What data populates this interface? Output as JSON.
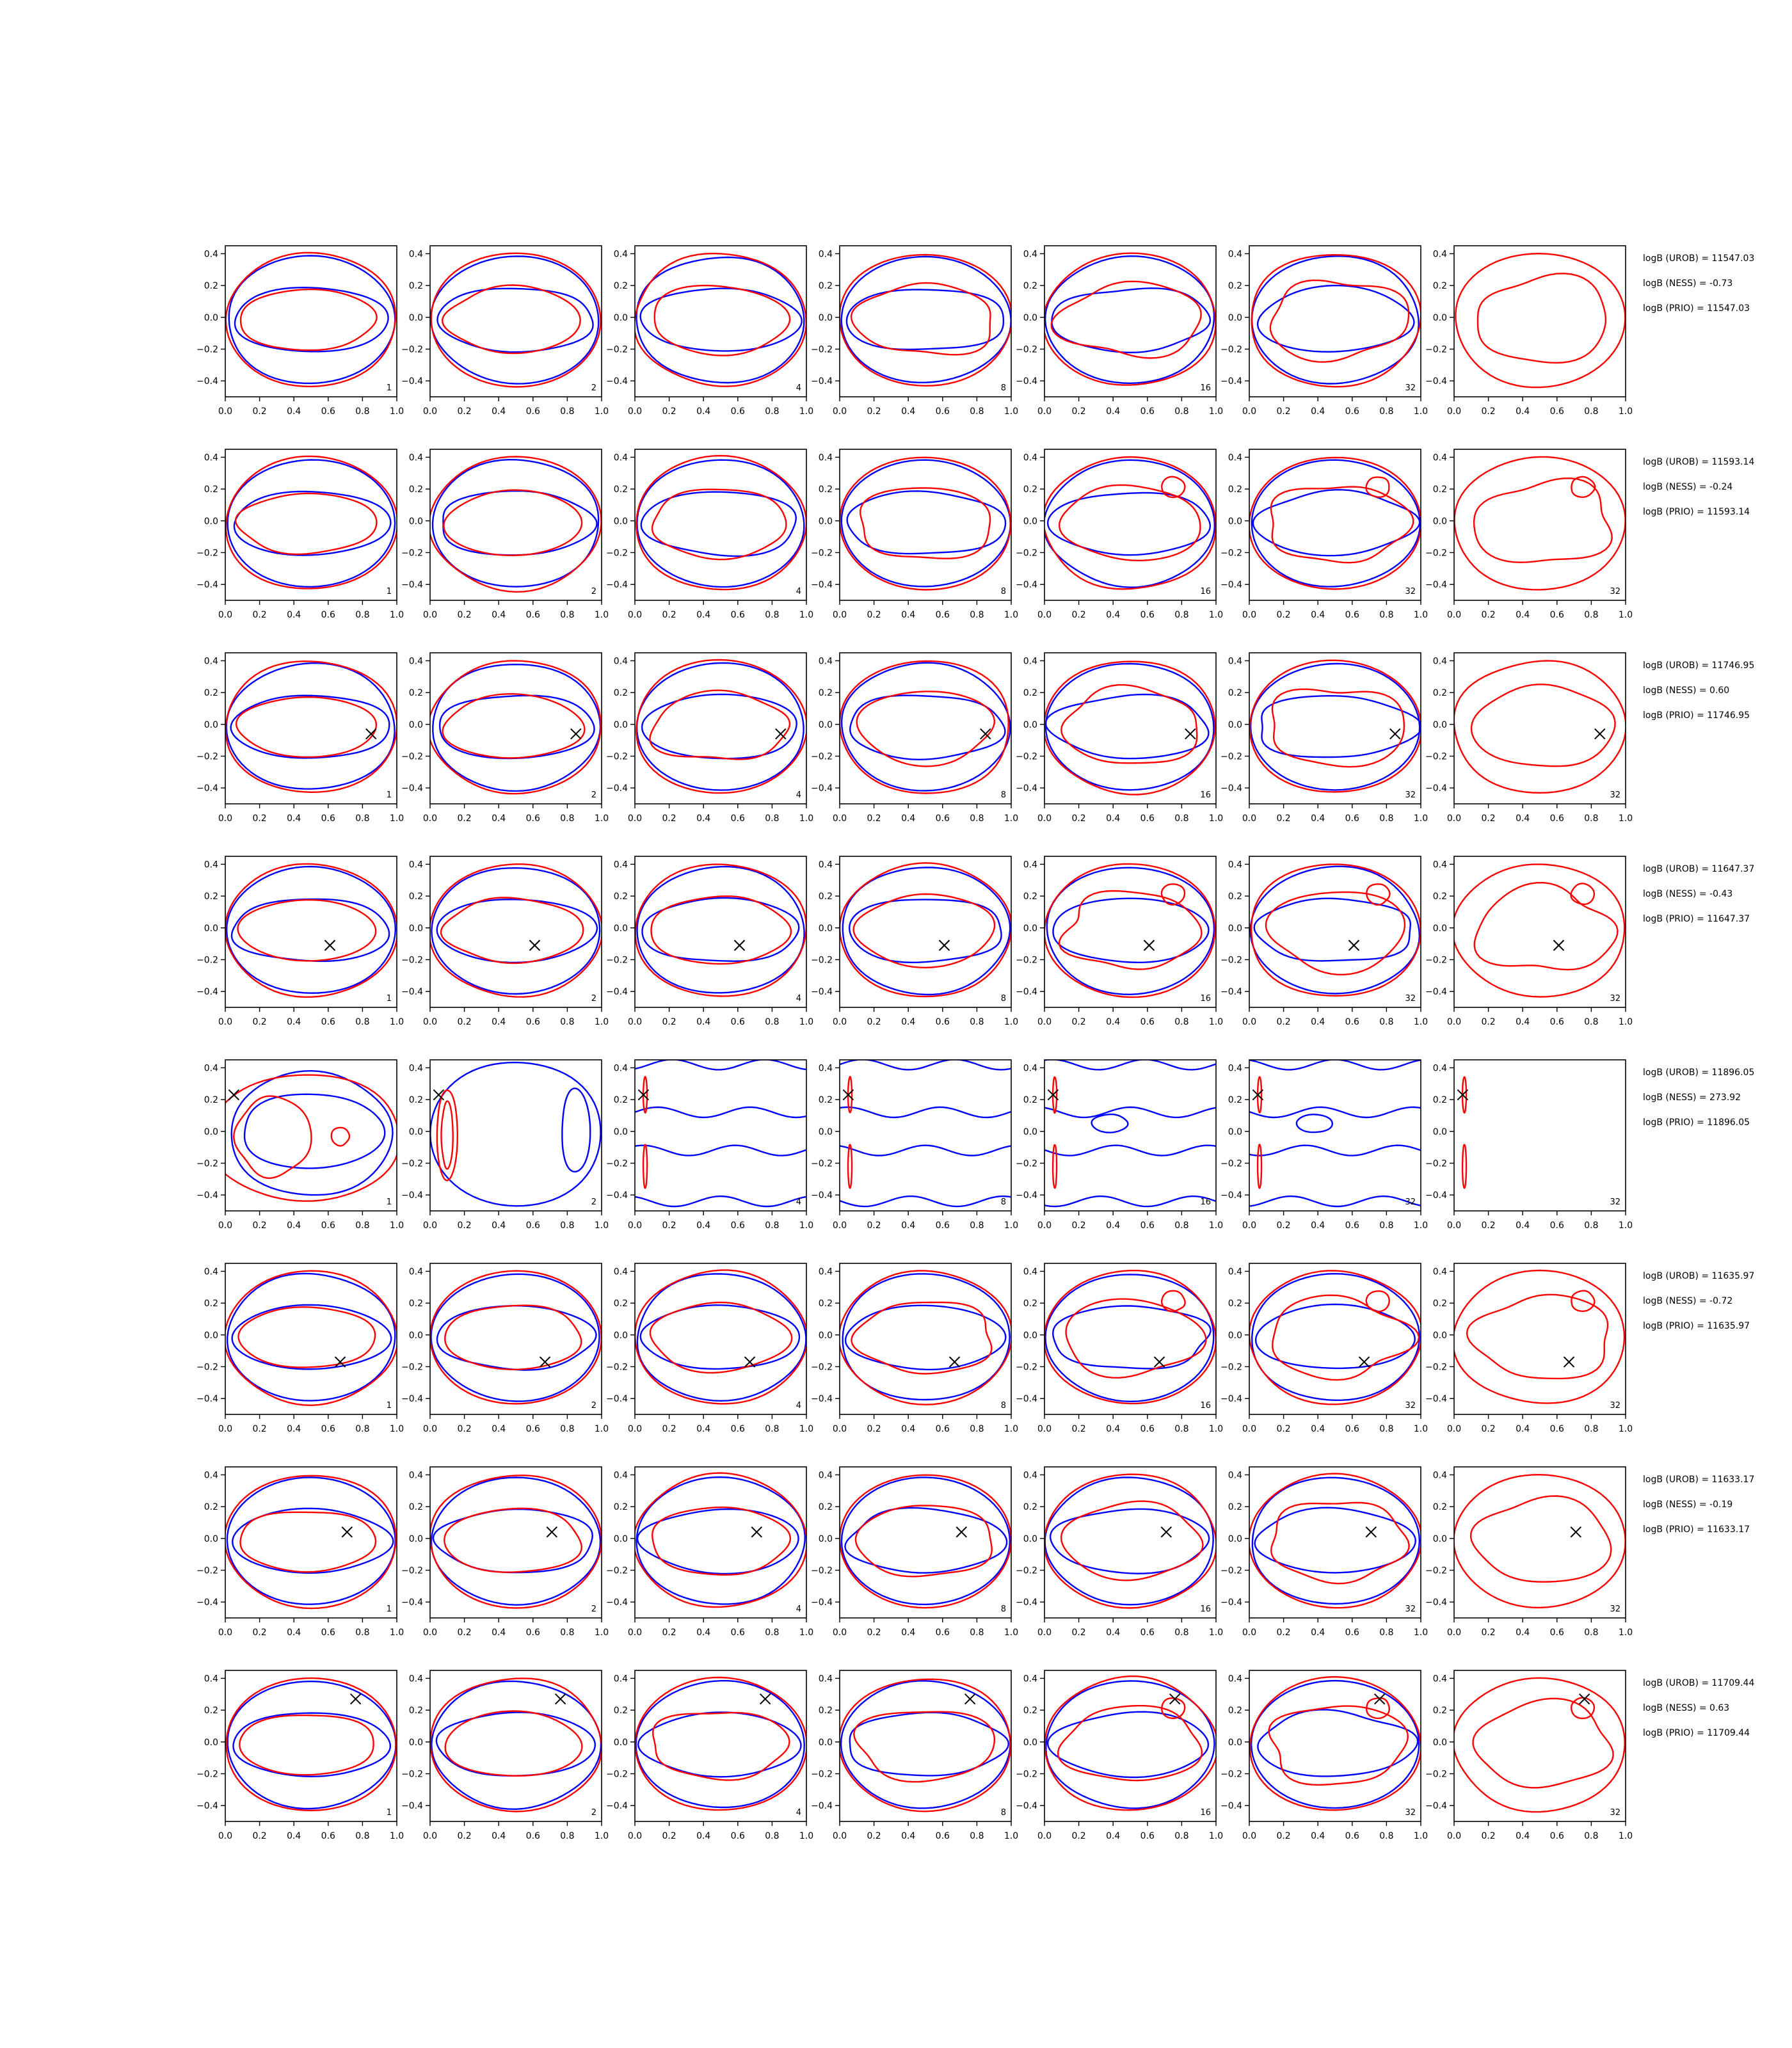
{
  "figure": {
    "colors": {
      "uniform_contour": "#0000ff",
      "prior_contour": "#ff0000",
      "marker": "#000000",
      "axes": "#000000"
    }
  },
  "chart_data": {
    "type": "contour-grid",
    "shared_axes": {
      "xlim": [
        0.0,
        1.0
      ],
      "ylim": [
        -0.5,
        0.45
      ],
      "x_ticks": [
        0.0,
        0.2,
        0.4,
        0.6,
        0.8,
        1.0
      ],
      "x_tick_labels": [
        "0.0",
        "0.2",
        "0.4",
        "0.6",
        "0.8",
        "1.0"
      ],
      "y_ticks": [
        -0.4,
        -0.2,
        0.0,
        0.2,
        0.4
      ],
      "y_tick_labels": [
        "−0.4",
        "−0.2",
        "0.0",
        "0.2",
        "0.4"
      ]
    },
    "column_labels": [
      "1",
      "2",
      "4",
      "8",
      "16",
      "32",
      "32"
    ],
    "rows": [
      {
        "marker": null,
        "stats": [
          "logB (UROB) = 11547.03",
          "logB (NESS) = -0.73",
          "logB (PRIO) = 11547.03"
        ]
      },
      {
        "marker": null,
        "stats": [
          "logB (UROB) = 11593.14",
          "logB (NESS) = -0.24",
          "logB (PRIO) = 11593.14"
        ]
      },
      {
        "marker": [
          0.85,
          -0.06
        ],
        "stats": [
          "logB (UROB) = 11746.95",
          "logB (NESS) = 0.60",
          "logB (PRIO) = 11746.95"
        ]
      },
      {
        "marker": [
          0.61,
          -0.11
        ],
        "stats": [
          "logB (UROB) = 11647.37",
          "logB (NESS) = -0.43",
          "logB (PRIO) = 11647.37"
        ]
      },
      {
        "marker": [
          0.05,
          0.23
        ],
        "stats": [
          "logB (UROB) = 11896.05",
          "logB (NESS) = 273.92",
          "logB (PRIO) = 11896.05"
        ]
      },
      {
        "marker": [
          0.67,
          -0.17
        ],
        "stats": [
          "logB (UROB) = 11635.97",
          "logB (NESS) = -0.72",
          "logB (PRIO) = 11635.97"
        ]
      },
      {
        "marker": [
          0.71,
          0.04
        ],
        "stats": [
          "logB (UROB) = 11633.17",
          "logB (NESS) = -0.19",
          "logB (PRIO) = 11633.17"
        ]
      },
      {
        "marker": [
          0.76,
          0.27
        ],
        "stats": [
          "logB (UROB) = 11709.44",
          "logB (NESS) = 0.63",
          "logB (PRIO) = 11709.44"
        ]
      }
    ]
  }
}
